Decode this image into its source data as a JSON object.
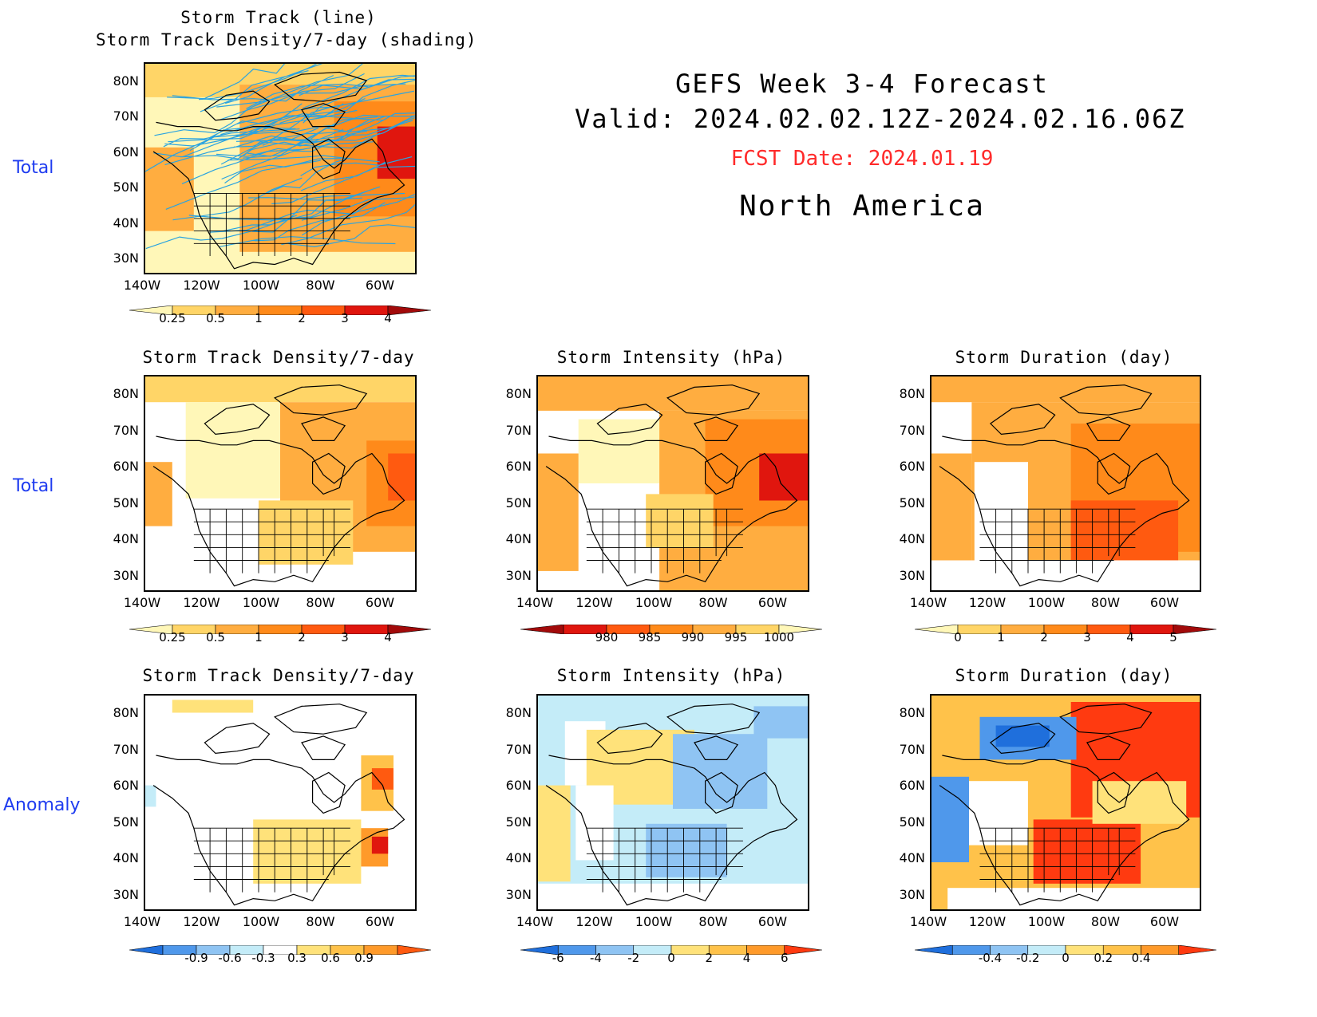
{
  "header": {
    "title": "GEFS Week 3-4 Forecast",
    "valid": "Valid: 2024.02.02.12Z-2024.02.16.06Z",
    "fcst_date": "FCST Date: 2024.01.19",
    "region": "North America",
    "fcst_color": "#ff2a2a"
  },
  "row_labels": [
    "Total",
    "Total",
    "Anomaly"
  ],
  "axes": {
    "lat_labels": [
      "80N",
      "70N",
      "60N",
      "50N",
      "40N",
      "30N"
    ],
    "lon_labels": [
      "140W",
      "120W",
      "100W",
      "80W",
      "60W"
    ]
  },
  "panels": [
    {
      "id": "tracks-total",
      "title1": "Storm Track (line)",
      "title2": "Storm Track Density/7-day (shading)",
      "colorbar_labels": [
        "0.25",
        "0.5",
        "1",
        "2",
        "3",
        "4"
      ],
      "colorbar_colors": [
        "#fff7b8",
        "#ffd567",
        "#ffad40",
        "#ff8a1a",
        "#ff5a10",
        "#e0160e",
        "#a20a0a"
      ]
    },
    {
      "id": "density-total",
      "title1": "Storm Track Density/7-day",
      "colorbar_labels": [
        "0.25",
        "0.5",
        "1",
        "2",
        "3",
        "4"
      ],
      "colorbar_colors": [
        "#fff7b8",
        "#ffd567",
        "#ffad40",
        "#ff8a1a",
        "#ff5a10",
        "#e0160e",
        "#a20a0a"
      ]
    },
    {
      "id": "intensity-total",
      "title1": "Storm Intensity (hPa)",
      "colorbar_labels": [
        "980",
        "985",
        "990",
        "995",
        "1000"
      ],
      "colorbar_colors": [
        "#a20a0a",
        "#e0160e",
        "#ff5a10",
        "#ff8a1a",
        "#ffad40",
        "#ffd567",
        "#fff7b8"
      ]
    },
    {
      "id": "duration-total",
      "title1": "Storm Duration (day)",
      "colorbar_labels": [
        "0",
        "1",
        "2",
        "3",
        "4",
        "5"
      ],
      "colorbar_colors": [
        "#fff7b8",
        "#ffd567",
        "#ffad40",
        "#ff8a1a",
        "#ff5a10",
        "#e0160e",
        "#a20a0a"
      ]
    },
    {
      "id": "density-anom",
      "title1": "Storm Track Density/7-day",
      "colorbar_labels": [
        "-0.9",
        "-0.6",
        "-0.3",
        "0.3",
        "0.6",
        "0.9"
      ],
      "colorbar_colors": [
        "#1f6fdc",
        "#4f98eb",
        "#8fc4f3",
        "#c4ecf8",
        "#ffffff",
        "#ffe27a",
        "#ffc24a",
        "#ff9a2a",
        "#ff5a10"
      ]
    },
    {
      "id": "intensity-anom",
      "title1": "Storm Intensity (hPa)",
      "colorbar_labels": [
        "-6",
        "-4",
        "-2",
        "0",
        "2",
        "4",
        "6"
      ],
      "colorbar_colors": [
        "#1f6fdc",
        "#4f98eb",
        "#8fc4f3",
        "#c4ecf8",
        "#ffe27a",
        "#ffc24a",
        "#ff9a2a",
        "#ff3a10"
      ]
    },
    {
      "id": "duration-anom",
      "title1": "Storm Duration (day)",
      "colorbar_labels": [
        "-0.4",
        "-0.2",
        "0",
        "0.2",
        "0.4"
      ],
      "colorbar_colors": [
        "#1f6fdc",
        "#4f98eb",
        "#8fc4f3",
        "#c4ecf8",
        "#ffe27a",
        "#ffc24a",
        "#ff9a2a",
        "#ff3a10"
      ]
    }
  ]
}
